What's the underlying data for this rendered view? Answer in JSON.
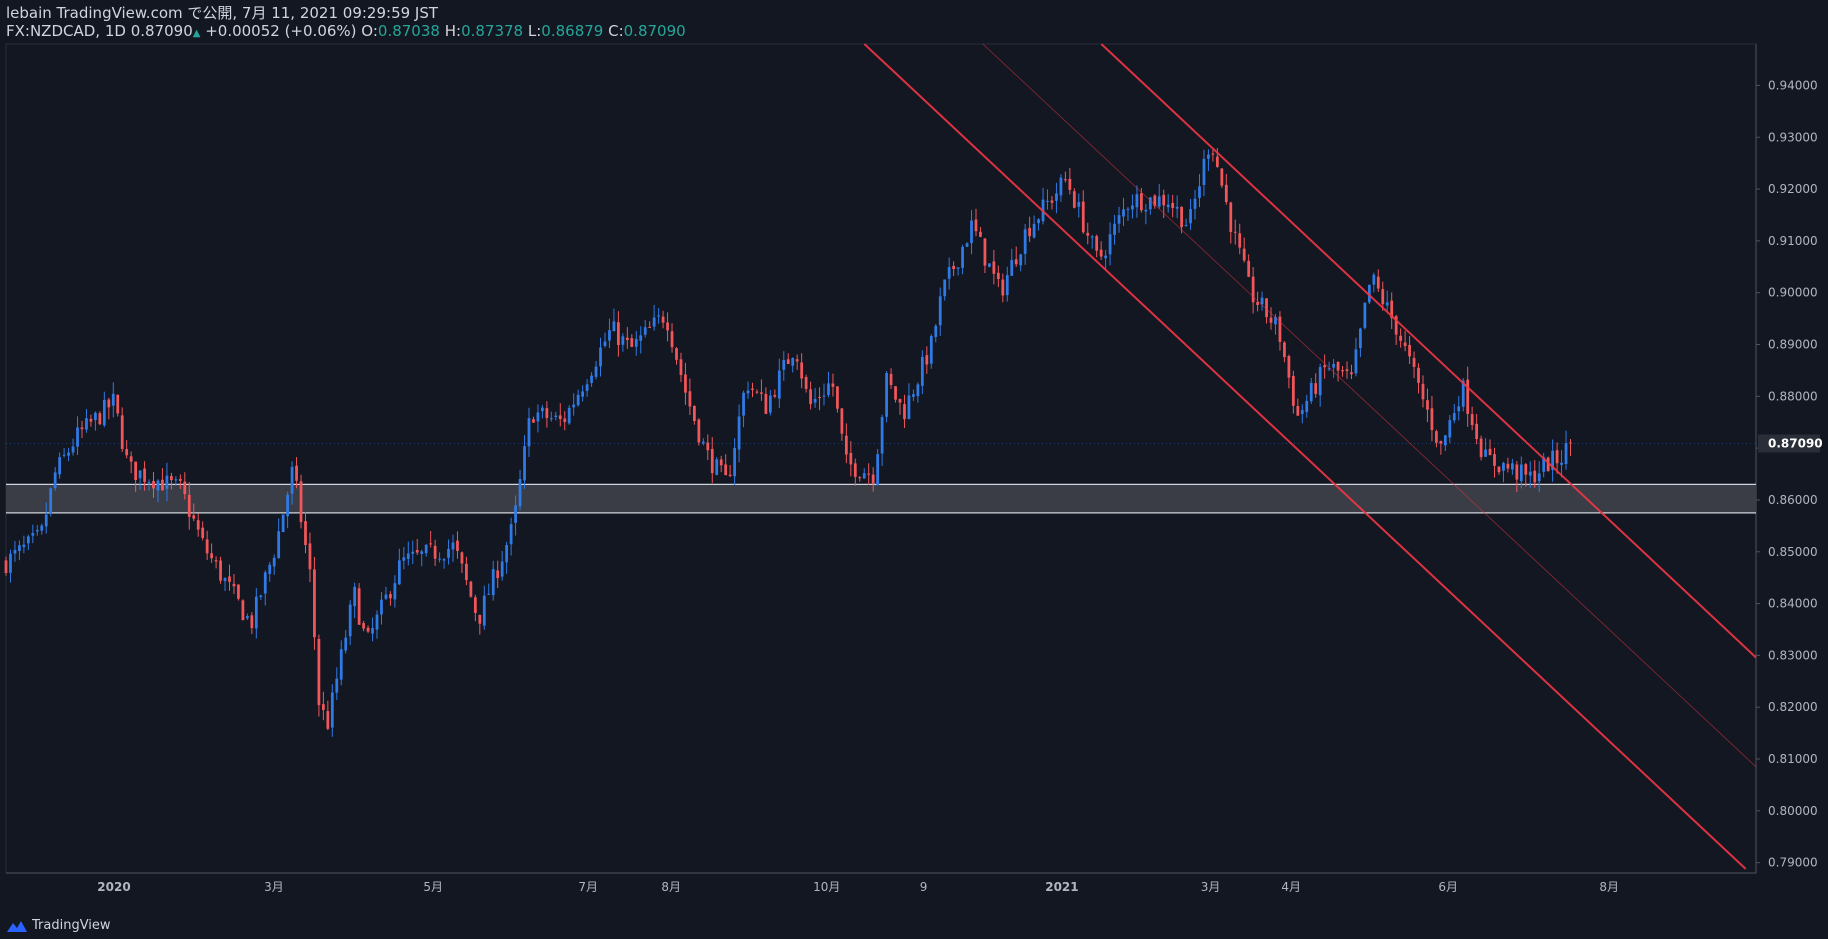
{
  "header": {
    "published": "lebain TradingView.com で公開, 7月 11, 2021 09:29:59 JST",
    "symbol": "FX:NZDCAD, 1D",
    "last": "0.87090",
    "change_arrow": "▲",
    "change": "+0.00052 (+0.06%)",
    "o_label": "O:",
    "o_value": "0.87038",
    "h_label": "H:",
    "h_value": "0.87378",
    "l_label": "L:",
    "l_value": "0.86879",
    "c_label": "C:",
    "c_value": "0.87090"
  },
  "footer": {
    "brand": "TradingView"
  },
  "colors": {
    "background": "#131722",
    "bull": "#2f7ae5",
    "bear": "#f0565a",
    "channel": "#f23645",
    "zone_fill": "#3a3d45",
    "zone_border": "#d1d4dc",
    "axis_text": "#b2b5be"
  },
  "chart_data": {
    "type": "candlestick",
    "symbol": "FX:NZDCAD",
    "interval": "1D",
    "ylim": [
      0.788,
      0.948
    ],
    "y_ticks": [
      "0.94000",
      "0.93000",
      "0.92000",
      "0.91000",
      "0.90000",
      "0.89000",
      "0.88000",
      "0.87000",
      "0.86000",
      "0.85000",
      "0.84000",
      "0.83000",
      "0.82000",
      "0.81000",
      "0.80000",
      "0.79000"
    ],
    "last_price_label": "0.87090",
    "last_price": 0.8709,
    "x_ticks": [
      {
        "label": "2020",
        "t": 0.0617
      },
      {
        "label": "3月",
        "t": 0.1531
      },
      {
        "label": "5月",
        "t": 0.2441
      },
      {
        "label": "7月",
        "t": 0.3327
      },
      {
        "label": "8月",
        "t": 0.3801
      },
      {
        "label": "10月",
        "t": 0.469
      },
      {
        "label": "9",
        "t": 0.5243
      },
      {
        "label": "2021",
        "t": 0.6034
      },
      {
        "label": "3月",
        "t": 0.6883
      },
      {
        "label": "4月",
        "t": 0.7344
      },
      {
        "label": "6月",
        "t": 0.8241
      },
      {
        "label": "8月",
        "t": 0.9161
      }
    ],
    "support_zone": [
      0.8575,
      0.863
    ],
    "channel_upper": [
      {
        "t": 0.6259,
        "price": 0.948
      },
      {
        "t": 1.0,
        "price": 0.8296
      }
    ],
    "channel_lower": [
      {
        "t": 0.4905,
        "price": 0.948
      },
      {
        "t": 0.9941,
        "price": 0.7888
      }
    ],
    "channel_mid": [
      {
        "t": 0.5582,
        "price": 0.948
      },
      {
        "t": 1.0,
        "price": 0.8085
      }
    ],
    "anchors": [
      {
        "t": 0.0,
        "price": 0.848
      },
      {
        "t": 0.02,
        "price": 0.853
      },
      {
        "t": 0.028,
        "price": 0.865
      },
      {
        "t": 0.04,
        "price": 0.872
      },
      {
        "t": 0.0617,
        "price": 0.879
      },
      {
        "t": 0.07,
        "price": 0.866
      },
      {
        "t": 0.1,
        "price": 0.862
      },
      {
        "t": 0.113,
        "price": 0.851
      },
      {
        "t": 0.14,
        "price": 0.836
      },
      {
        "t": 0.154,
        "price": 0.851
      },
      {
        "t": 0.164,
        "price": 0.866
      },
      {
        "t": 0.174,
        "price": 0.845
      },
      {
        "t": 0.179,
        "price": 0.82
      },
      {
        "t": 0.184,
        "price": 0.817
      },
      {
        "t": 0.199,
        "price": 0.842
      },
      {
        "t": 0.206,
        "price": 0.832
      },
      {
        "t": 0.226,
        "price": 0.848
      },
      {
        "t": 0.256,
        "price": 0.851
      },
      {
        "t": 0.27,
        "price": 0.837
      },
      {
        "t": 0.29,
        "price": 0.855
      },
      {
        "t": 0.3,
        "price": 0.877
      },
      {
        "t": 0.318,
        "price": 0.875
      },
      {
        "t": 0.346,
        "price": 0.893
      },
      {
        "t": 0.357,
        "price": 0.889
      },
      {
        "t": 0.377,
        "price": 0.896
      },
      {
        "t": 0.389,
        "price": 0.88
      },
      {
        "t": 0.4,
        "price": 0.869
      },
      {
        "t": 0.412,
        "price": 0.863
      },
      {
        "t": 0.423,
        "price": 0.883
      },
      {
        "t": 0.434,
        "price": 0.878
      },
      {
        "t": 0.451,
        "price": 0.89
      },
      {
        "t": 0.459,
        "price": 0.878
      },
      {
        "t": 0.472,
        "price": 0.883
      },
      {
        "t": 0.48,
        "price": 0.867
      },
      {
        "t": 0.496,
        "price": 0.865
      },
      {
        "t": 0.503,
        "price": 0.883
      },
      {
        "t": 0.513,
        "price": 0.877
      },
      {
        "t": 0.529,
        "price": 0.89
      },
      {
        "t": 0.535,
        "price": 0.9
      },
      {
        "t": 0.552,
        "price": 0.913
      },
      {
        "t": 0.568,
        "price": 0.9
      },
      {
        "t": 0.583,
        "price": 0.912
      },
      {
        "t": 0.606,
        "price": 0.922
      },
      {
        "t": 0.624,
        "price": 0.906
      },
      {
        "t": 0.642,
        "price": 0.918
      },
      {
        "t": 0.664,
        "price": 0.918
      },
      {
        "t": 0.676,
        "price": 0.913
      },
      {
        "t": 0.6883,
        "price": 0.93
      },
      {
        "t": 0.701,
        "price": 0.912
      },
      {
        "t": 0.711,
        "price": 0.9
      },
      {
        "t": 0.727,
        "price": 0.893
      },
      {
        "t": 0.738,
        "price": 0.876
      },
      {
        "t": 0.755,
        "price": 0.886
      },
      {
        "t": 0.769,
        "price": 0.883
      },
      {
        "t": 0.78,
        "price": 0.903
      },
      {
        "t": 0.795,
        "price": 0.893
      },
      {
        "t": 0.809,
        "price": 0.88
      },
      {
        "t": 0.82,
        "price": 0.87
      },
      {
        "t": 0.832,
        "price": 0.882
      },
      {
        "t": 0.845,
        "price": 0.868
      },
      {
        "t": 0.86,
        "price": 0.866
      },
      {
        "t": 0.87,
        "price": 0.864
      },
      {
        "t": 0.88,
        "price": 0.867
      },
      {
        "t": 0.888,
        "price": 0.868
      },
      {
        "t": 0.894,
        "price": 0.8709
      }
    ]
  }
}
